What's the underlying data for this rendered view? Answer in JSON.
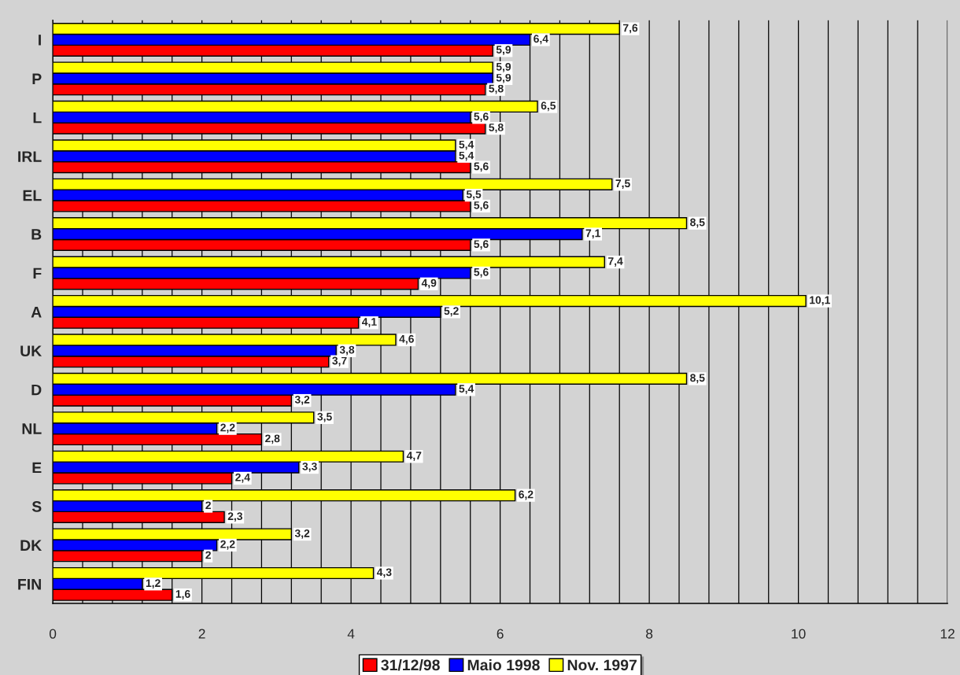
{
  "chart_data": {
    "type": "bar",
    "orientation": "horizontal",
    "categories": [
      "I",
      "P",
      "L",
      "IRL",
      "EL",
      "B",
      "F",
      "A",
      "UK",
      "D",
      "NL",
      "E",
      "S",
      "DK",
      "FIN"
    ],
    "series": [
      {
        "name": "31/12/98",
        "color": "#ff0000",
        "values": [
          5.9,
          5.8,
          5.8,
          5.6,
          5.6,
          5.6,
          4.9,
          4.1,
          3.7,
          3.2,
          2.8,
          2.4,
          2.3,
          2,
          1.6
        ],
        "value_labels": [
          "5,9",
          "5,8",
          "5,8",
          "5,6",
          "5,6",
          "5,6",
          "4,9",
          "4,1",
          "3,7",
          "3,2",
          "2,8",
          "2,4",
          "2,3",
          "2",
          "1,6"
        ]
      },
      {
        "name": "Maio 1998",
        "color": "#0000ff",
        "values": [
          6.4,
          5.9,
          5.6,
          5.4,
          5.5,
          7.1,
          5.6,
          5.2,
          3.8,
          5.4,
          2.2,
          3.3,
          2,
          2.2,
          1.2
        ],
        "value_labels": [
          "6,4",
          "5,9",
          "5,6",
          "5,4",
          "5,5",
          "7,1",
          "5,6",
          "5,2",
          "3,8",
          "5,4",
          "2,2",
          "3,3",
          "2",
          "2,2",
          "1,2"
        ]
      },
      {
        "name": "Nov. 1997",
        "color": "#ffff00",
        "values": [
          7.6,
          5.9,
          6.5,
          5.4,
          7.5,
          8.5,
          7.4,
          10.1,
          4.6,
          8.5,
          3.5,
          4.7,
          6.2,
          3.2,
          4.3
        ],
        "value_labels": [
          "7,6",
          "5,9",
          "6,5",
          "5,4",
          "7,5",
          "8,5",
          "7,4",
          "10,1",
          "4,6",
          "8,5",
          "3,5",
          "4,7",
          "6,2",
          "3,2",
          "4,3"
        ]
      }
    ],
    "xlim": [
      0,
      12
    ],
    "xticks": [
      0,
      {
        "value": 0.4,
        "label": null
      },
      {
        "value": 0.8,
        "label": null
      },
      {
        "value": 1.2,
        "label": null
      },
      {
        "value": 1.6,
        "label": null
      },
      2,
      {
        "value": 2.4,
        "label": null
      },
      {
        "value": 2.8,
        "label": null
      },
      {
        "value": 3.2,
        "label": null
      },
      {
        "value": 3.6,
        "label": null
      },
      4,
      {
        "value": 4.4,
        "label": null
      },
      {
        "value": 4.8,
        "label": null
      },
      {
        "value": 5.2,
        "label": null
      },
      {
        "value": 5.6,
        "label": null
      },
      6,
      {
        "value": 6.4,
        "label": null
      },
      {
        "value": 6.8,
        "label": null
      },
      {
        "value": 7.2,
        "label": null
      },
      {
        "value": 7.6,
        "label": null
      },
      8,
      {
        "value": 8.4,
        "label": null
      },
      {
        "value": 8.8,
        "label": null
      },
      {
        "value": 9.2,
        "label": null
      },
      {
        "value": 9.6,
        "label": null
      },
      10,
      {
        "value": 10.4,
        "label": null
      },
      {
        "value": 10.8,
        "label": null
      },
      {
        "value": 11.2,
        "label": null
      },
      {
        "value": 11.6,
        "label": null
      },
      12
    ],
    "grid": "x",
    "legend": "bottom"
  }
}
